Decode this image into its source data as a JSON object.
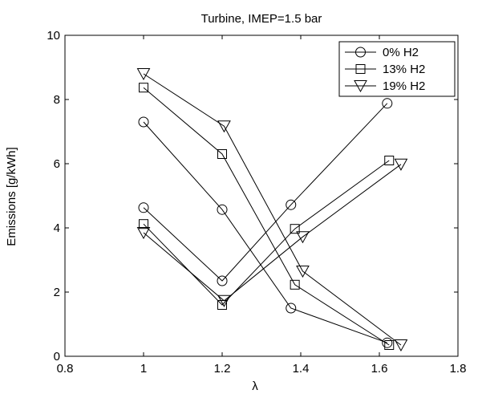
{
  "chart_data": {
    "type": "line",
    "title": "Turbine, IMEP=1.5 bar",
    "xlabel": "λ",
    "ylabel": "Emissions [g/kWh]",
    "xlim": [
      0.8,
      1.8
    ],
    "ylim": [
      0,
      10
    ],
    "xticks": [
      0.8,
      1,
      1.2,
      1.4,
      1.6,
      1.8
    ],
    "yticks": [
      0,
      2,
      4,
      6,
      8,
      10
    ],
    "xtick_labels": [
      "0.8",
      "1",
      "1.2",
      "1.4",
      "1.6",
      "1.8"
    ],
    "ytick_labels": [
      "0",
      "2",
      "4",
      "6",
      "8",
      "10"
    ],
    "grid": false,
    "legend_position": "top-right",
    "line_color": "#000000",
    "series": [
      {
        "name": "0% H2",
        "marker": "circle",
        "groups": [
          {
            "x": [
              1.0,
              1.2,
              1.375,
              1.62
            ],
            "y": [
              7.3,
              4.57,
              1.5,
              0.42
            ]
          },
          {
            "x": [
              1.0,
              1.2,
              1.375,
              1.62
            ],
            "y": [
              4.63,
              2.35,
              4.72,
              7.88
            ]
          }
        ]
      },
      {
        "name": "13% H2",
        "marker": "square",
        "groups": [
          {
            "x": [
              1.0,
              1.2,
              1.385,
              1.625
            ],
            "y": [
              8.37,
              6.3,
              2.23,
              0.35
            ]
          },
          {
            "x": [
              1.0,
              1.2,
              1.385,
              1.625
            ],
            "y": [
              4.12,
              1.6,
              3.97,
              6.1
            ]
          }
        ]
      },
      {
        "name": "19% H2",
        "marker": "triangle-down",
        "groups": [
          {
            "x": [
              1.0,
              1.205,
              1.405,
              1.655
            ],
            "y": [
              8.8,
              7.17,
              2.65,
              0.35
            ]
          },
          {
            "x": [
              1.0,
              1.205,
              1.405,
              1.655
            ],
            "y": [
              3.85,
              1.73,
              3.72,
              5.98
            ]
          }
        ]
      }
    ]
  }
}
